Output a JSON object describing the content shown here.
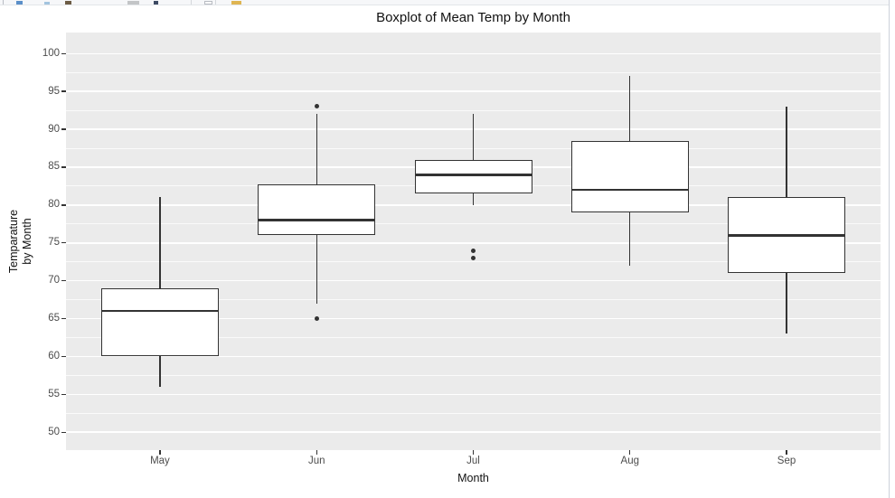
{
  "window": {
    "toolbar": {
      "fragments": [
        {
          "name": "toolbar-divider-1",
          "x": 3,
          "w": 1,
          "h": 6,
          "color": "#b9bdc4",
          "interactable": false
        },
        {
          "name": "back-icon",
          "x": 18,
          "w": 7,
          "h": 4,
          "color": "#5b8fc9",
          "interactable": true
        },
        {
          "name": "forward-icon",
          "x": 49,
          "w": 6,
          "h": 3,
          "color": "#a3c4df",
          "interactable": true
        },
        {
          "name": "zoom-icon",
          "x": 72,
          "w": 7,
          "h": 4,
          "color": "#6d5c45",
          "interactable": true
        },
        {
          "name": "export-button",
          "x": 141,
          "w": 13,
          "h": 4,
          "color": "#c3c5c7",
          "interactable": true
        },
        {
          "name": "save-icon",
          "x": 170,
          "w": 5,
          "h": 4,
          "color": "#3d4a63",
          "interactable": true
        },
        {
          "name": "toolbar-divider-2",
          "x": 211,
          "w": 1,
          "h": 6,
          "color": "#d4d7db",
          "interactable": false
        },
        {
          "name": "clear-plot-icon",
          "x": 226,
          "w": 9,
          "h": 4,
          "color": "#fdfdfd",
          "border": "#b7bbc1",
          "interactable": true
        },
        {
          "name": "toolbar-divider-3",
          "x": 238,
          "w": 1,
          "h": 6,
          "color": "#d4d7db",
          "interactable": false
        },
        {
          "name": "broom-icon",
          "x": 256,
          "w": 11,
          "h": 5,
          "color": "#dfb552",
          "interactable": true
        }
      ]
    }
  },
  "chart_data": {
    "type": "boxplot",
    "title": "Boxplot of Mean Temp by Month",
    "xlabel": "Month",
    "ylabel": "Temparature by Month",
    "ylabel_lines": [
      "Temparature",
      "by Month"
    ],
    "categories": [
      "May",
      "Jun",
      "Jul",
      "Aug",
      "Sep"
    ],
    "y_ticks": [
      50,
      55,
      60,
      65,
      70,
      75,
      80,
      85,
      90,
      95,
      100
    ],
    "ylim": [
      47.6,
      102.8
    ],
    "grid": {
      "major_step": 5,
      "minor_step": 2.5,
      "color": "#FFFFFF"
    },
    "boxes": [
      {
        "category": "May",
        "whisker_low": 56,
        "q1": 60,
        "median": 66,
        "q3": 69,
        "whisker_high": 81,
        "outliers": []
      },
      {
        "category": "Jun",
        "whisker_low": 67,
        "q1": 76,
        "median": 78,
        "q3": 82.7,
        "whisker_high": 92,
        "outliers": [
          65,
          93
        ]
      },
      {
        "category": "Jul",
        "whisker_low": 80,
        "q1": 81.5,
        "median": 84,
        "q3": 86,
        "whisker_high": 92,
        "outliers": [
          73,
          74
        ]
      },
      {
        "category": "Aug",
        "whisker_low": 72,
        "q1": 79,
        "median": 82,
        "q3": 88.5,
        "whisker_high": 97,
        "outliers": []
      },
      {
        "category": "Sep",
        "whisker_low": 63,
        "q1": 71,
        "median": 76,
        "q3": 81,
        "whisker_high": 93,
        "outliers": []
      }
    ],
    "colors": {
      "panel_bg": "#EBEBEB",
      "grid": "#FFFFFF",
      "box_fill": "#FFFFFF",
      "box_stroke": "#333333",
      "tick_text": "#4D4D4D",
      "title_text": "#111111"
    }
  }
}
